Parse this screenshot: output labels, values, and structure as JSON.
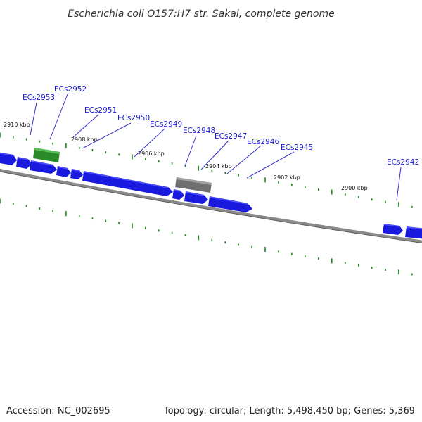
{
  "title": "Escherichia coli O157:H7 str. Sakai, complete genome",
  "footer": {
    "accession": "Accession: NC_002695",
    "topology": "Topology: circular; Length: 5,498,450 bp; Genes: 5,369"
  },
  "colors": {
    "gene_blue": "#1a1adf",
    "gene_green": "#2a8a2a",
    "gene_gray": "#707070",
    "backbone": "#8a8a8a",
    "tick_green": "#1b8a1b",
    "label_blue": "#1a1ad0",
    "leader_blue": "#3333cc"
  },
  "scale_labels": [
    "2910 kbp",
    "2908 kbp",
    "2906 kbp",
    "2904 kbp",
    "2902 kbp",
    "2900 kbp"
  ],
  "gene_labels": [
    "ECs2953",
    "ECs2952",
    "ECs2951",
    "ECs2950",
    "ECs2949",
    "ECs2948",
    "ECs2947",
    "ECs2946",
    "ECs2945",
    "ECs2942"
  ]
}
